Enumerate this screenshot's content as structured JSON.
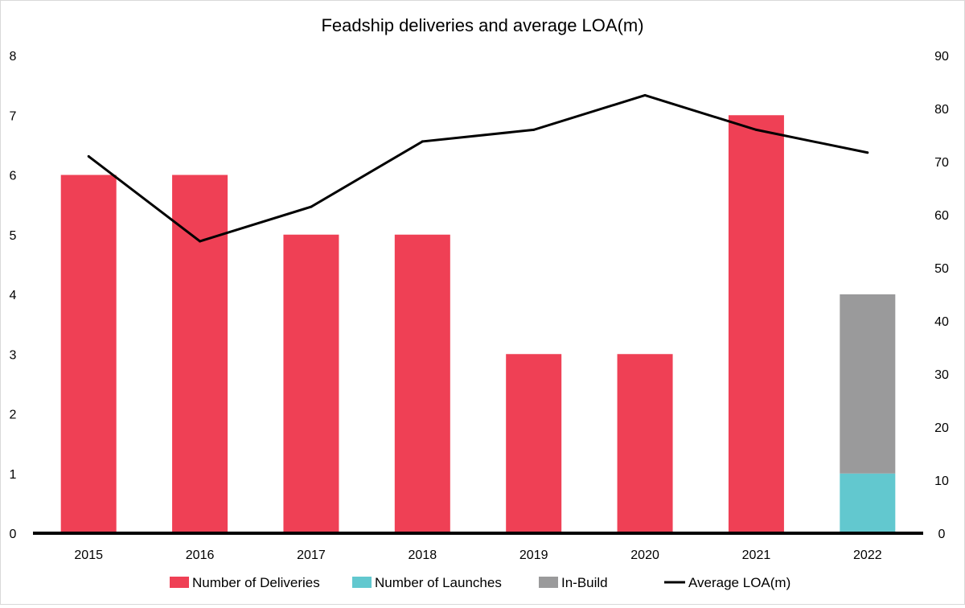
{
  "chart_data": {
    "type": "bar",
    "title": "Feadship deliveries and average LOA(m)",
    "categories": [
      "2015",
      "2016",
      "2017",
      "2018",
      "2019",
      "2020",
      "2021",
      "2022"
    ],
    "series": [
      {
        "name": "Number of Deliveries",
        "kind": "bar",
        "axis": "left",
        "color": "#ef4055",
        "values": [
          6,
          6,
          5,
          5,
          3,
          3,
          7,
          0
        ]
      },
      {
        "name": "Number of Launches",
        "kind": "bar",
        "axis": "left",
        "color": "#62c8cf",
        "values": [
          0,
          0,
          0,
          0,
          0,
          0,
          0,
          1
        ]
      },
      {
        "name": "In-Build",
        "kind": "bar",
        "axis": "left",
        "color": "#9a9a9b",
        "values": [
          0,
          0,
          0,
          0,
          0,
          0,
          0,
          3
        ]
      },
      {
        "name": "Average LOA(m)",
        "kind": "line",
        "axis": "right",
        "color": "#000000",
        "values": [
          71,
          55,
          61.5,
          73.8,
          76,
          82.5,
          76,
          71.7
        ]
      }
    ],
    "stacked": true,
    "left_axis": {
      "min": 0,
      "max": 8,
      "ticks": [
        "0",
        "1",
        "2",
        "3",
        "4",
        "5",
        "6",
        "7",
        "8"
      ]
    },
    "right_axis": {
      "min": 0,
      "max": 90,
      "ticks": [
        "0",
        "10",
        "20",
        "30",
        "40",
        "50",
        "60",
        "70",
        "80",
        "90"
      ]
    },
    "grid": false,
    "legend_position": "bottom"
  }
}
